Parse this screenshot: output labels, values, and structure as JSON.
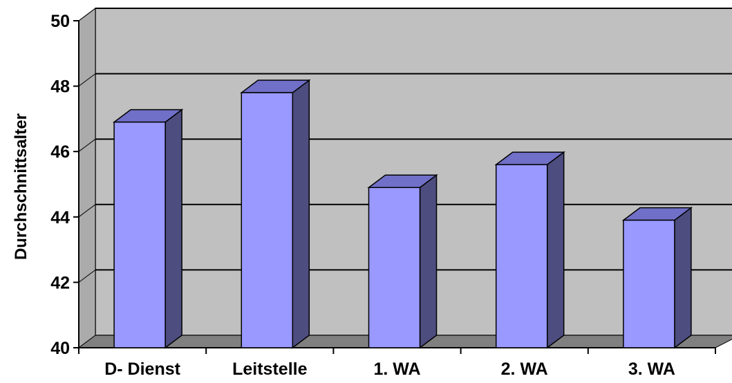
{
  "chart_data": {
    "type": "bar",
    "title": "",
    "xlabel": "",
    "ylabel": "Durchschnittsalter",
    "categories": [
      "D- Dienst",
      "Leitstelle",
      "1. WA",
      "2. WA",
      "3. WA"
    ],
    "values": [
      46.9,
      47.8,
      44.9,
      45.6,
      43.9
    ],
    "ylim": [
      40,
      50
    ],
    "yticks": [
      "40",
      "42",
      "44",
      "46",
      "48",
      "50"
    ],
    "grid": true,
    "legend": "none",
    "style": "3d-column",
    "colors": {
      "bar_front": "#9999ff",
      "bar_side": "#4d4d80",
      "bar_top": "#7070c8",
      "back_wall": "#c0c0c0",
      "side_wall": "#ababab",
      "floor": "#808080"
    }
  }
}
